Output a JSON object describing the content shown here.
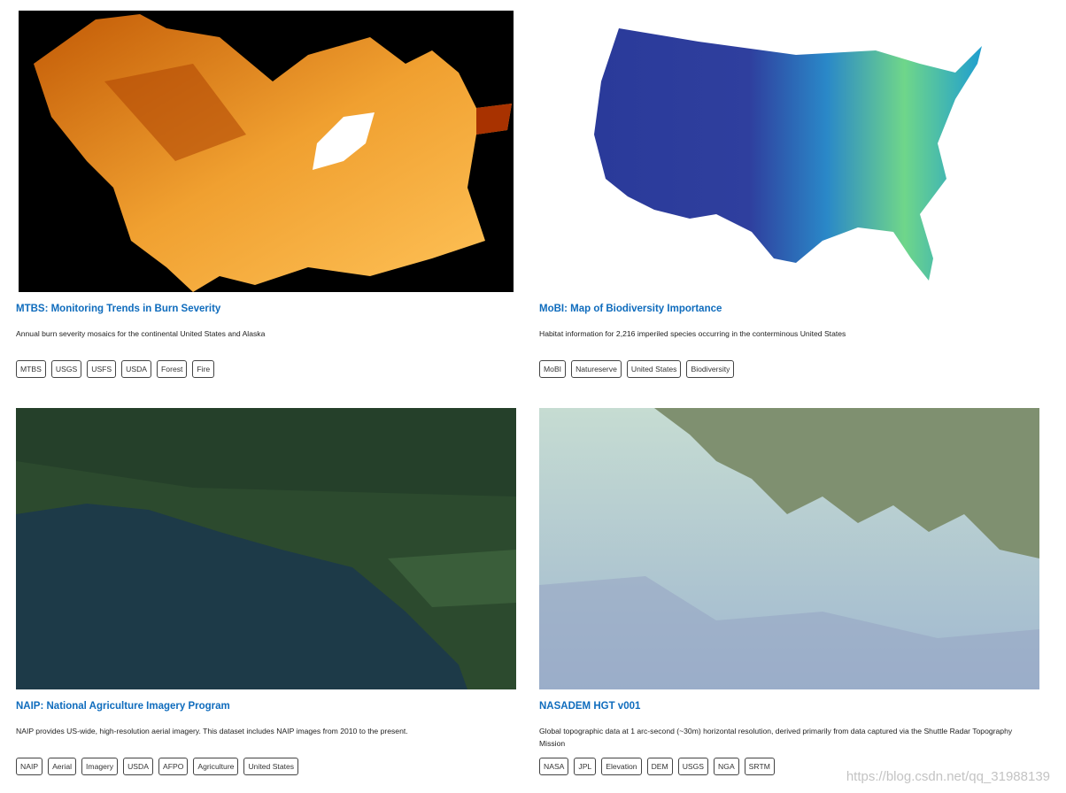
{
  "cards": [
    {
      "title": "MTBS: Monitoring Trends in Burn Severity",
      "description": "Annual burn severity mosaics for the continental United States and Alaska",
      "tags": [
        "MTBS",
        "USGS",
        "USFS",
        "USDA",
        "Forest",
        "Fire"
      ]
    },
    {
      "title": "MoBI: Map of Biodiversity Importance",
      "description": "Habitat information for 2,216 imperiled species occurring in the conterminous United States",
      "tags": [
        "MoBI",
        "Natureserve",
        "United States",
        "Biodiversity"
      ]
    },
    {
      "title": "NAIP: National Agriculture Imagery Program",
      "description": "NAIP provides US-wide, high-resolution aerial imagery. This dataset includes NAIP images from 2010 to the present.",
      "tags": [
        "NAIP",
        "Aerial",
        "Imagery",
        "USDA",
        "AFPO",
        "Agriculture",
        "United States"
      ]
    },
    {
      "title": "NASADEM HGT v001",
      "description": "Global topographic data at 1 arc-second (~30m) horizontal resolution, derived primarily from data captured via the Shuttle Radar Topography Mission",
      "tags": [
        "NASA",
        "JPL",
        "Elevation",
        "DEM",
        "USGS",
        "NGA",
        "SRTM"
      ]
    }
  ],
  "watermark": "https://blog.csdn.net/qq_31988139"
}
